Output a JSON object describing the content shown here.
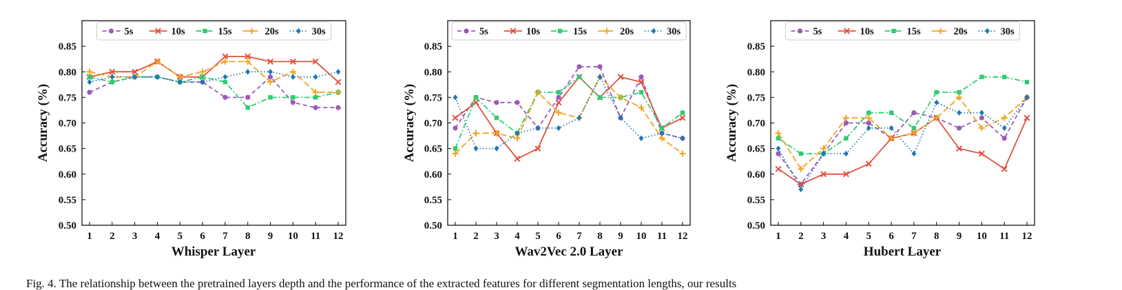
{
  "chart_data": [
    {
      "type": "line",
      "xlabel": "Whisper Layer",
      "ylabel": "Accuracy (%)",
      "x": [
        1,
        2,
        3,
        4,
        5,
        6,
        7,
        8,
        9,
        10,
        11,
        12
      ],
      "ylim": [
        0.5,
        0.9
      ],
      "yticks": [
        "0.50",
        "0.55",
        "0.60",
        "0.65",
        "0.70",
        "0.75",
        "0.80",
        "0.85"
      ],
      "legend_position": "top-center",
      "grid": false,
      "series": [
        {
          "name": "5s",
          "values": [
            0.76,
            0.78,
            0.79,
            0.79,
            0.78,
            0.78,
            0.75,
            0.75,
            0.79,
            0.74,
            0.73,
            0.73
          ]
        },
        {
          "name": "10s",
          "values": [
            0.79,
            0.8,
            0.8,
            0.82,
            0.79,
            0.79,
            0.83,
            0.83,
            0.82,
            0.82,
            0.82,
            0.78
          ]
        },
        {
          "name": "15s",
          "values": [
            0.79,
            0.78,
            0.79,
            0.79,
            0.78,
            0.79,
            0.78,
            0.73,
            0.75,
            0.75,
            0.75,
            0.76
          ]
        },
        {
          "name": "20s",
          "values": [
            0.8,
            0.79,
            0.79,
            0.82,
            0.79,
            0.8,
            0.82,
            0.82,
            0.78,
            0.8,
            0.76,
            0.76
          ]
        },
        {
          "name": "30s",
          "values": [
            0.78,
            0.79,
            0.79,
            0.79,
            0.78,
            0.78,
            0.79,
            0.8,
            0.8,
            0.79,
            0.79,
            0.8
          ]
        }
      ]
    },
    {
      "type": "line",
      "xlabel": "Wav2Vec 2.0 Layer",
      "ylabel": "Accuracy (%)",
      "x": [
        1,
        2,
        3,
        4,
        5,
        6,
        7,
        8,
        9,
        10,
        11,
        12
      ],
      "ylim": [
        0.5,
        0.9
      ],
      "yticks": [
        "0.50",
        "0.55",
        "0.60",
        "0.65",
        "0.70",
        "0.75",
        "0.80",
        "0.85"
      ],
      "legend_position": "top-center",
      "grid": false,
      "series": [
        {
          "name": "5s",
          "values": [
            0.69,
            0.75,
            0.74,
            0.74,
            0.69,
            0.75,
            0.81,
            0.81,
            0.71,
            0.79,
            0.68,
            0.67
          ]
        },
        {
          "name": "10s",
          "values": [
            0.71,
            0.74,
            0.68,
            0.63,
            0.65,
            0.74,
            0.79,
            0.75,
            0.79,
            0.78,
            0.69,
            0.71
          ]
        },
        {
          "name": "15s",
          "values": [
            0.65,
            0.75,
            0.71,
            0.68,
            0.76,
            0.76,
            0.79,
            0.75,
            0.75,
            0.76,
            0.69,
            0.72
          ]
        },
        {
          "name": "20s",
          "values": [
            0.64,
            0.68,
            0.68,
            0.67,
            0.76,
            0.72,
            0.71,
            0.79,
            0.75,
            0.73,
            0.67,
            0.64
          ]
        },
        {
          "name": "30s",
          "values": [
            0.75,
            0.65,
            0.65,
            0.68,
            0.69,
            0.69,
            0.71,
            0.79,
            0.71,
            0.67,
            0.68,
            0.67
          ]
        }
      ]
    },
    {
      "type": "line",
      "xlabel": "Hubert Layer",
      "ylabel": "Accuracy (%)",
      "x": [
        1,
        2,
        3,
        4,
        5,
        6,
        7,
        8,
        9,
        10,
        11,
        12
      ],
      "ylim": [
        0.5,
        0.9
      ],
      "yticks": [
        "0.50",
        "0.55",
        "0.60",
        "0.65",
        "0.70",
        "0.75",
        "0.80",
        "0.85"
      ],
      "legend_position": "top-center",
      "grid": false,
      "series": [
        {
          "name": "5s",
          "values": [
            0.64,
            0.58,
            0.64,
            0.7,
            0.7,
            0.67,
            0.72,
            0.71,
            0.69,
            0.71,
            0.67,
            0.75
          ]
        },
        {
          "name": "10s",
          "values": [
            0.61,
            0.58,
            0.6,
            0.6,
            0.62,
            0.67,
            0.68,
            0.71,
            0.65,
            0.64,
            0.61,
            0.71
          ]
        },
        {
          "name": "15s",
          "values": [
            0.67,
            0.64,
            0.64,
            0.67,
            0.72,
            0.72,
            0.69,
            0.76,
            0.76,
            0.79,
            0.79,
            0.78
          ]
        },
        {
          "name": "20s",
          "values": [
            0.68,
            0.61,
            0.65,
            0.71,
            0.71,
            0.67,
            0.68,
            0.71,
            0.75,
            0.69,
            0.71,
            0.75
          ]
        },
        {
          "name": "30s",
          "values": [
            0.65,
            0.57,
            0.64,
            0.64,
            0.69,
            0.69,
            0.64,
            0.74,
            0.72,
            0.72,
            0.69,
            0.75
          ]
        }
      ]
    }
  ],
  "styles": {
    "5s": {
      "color": "#9b59b6",
      "marker": "circle",
      "dash": "6,4"
    },
    "10s": {
      "color": "#e0513f",
      "marker": "x",
      "dash": ""
    },
    "15s": {
      "color": "#2ecc71",
      "marker": "square",
      "dash": "8,3,2,3"
    },
    "20s": {
      "color": "#f0a420",
      "marker": "plus",
      "dash": "9,4"
    },
    "30s": {
      "color": "#1f77b4",
      "marker": "diamond",
      "dash": "1.5,3"
    }
  },
  "caption": "Fig. 4.   The relationship between the pretrained layers depth and the performance of the extracted features for different segmentation lengths, our results"
}
